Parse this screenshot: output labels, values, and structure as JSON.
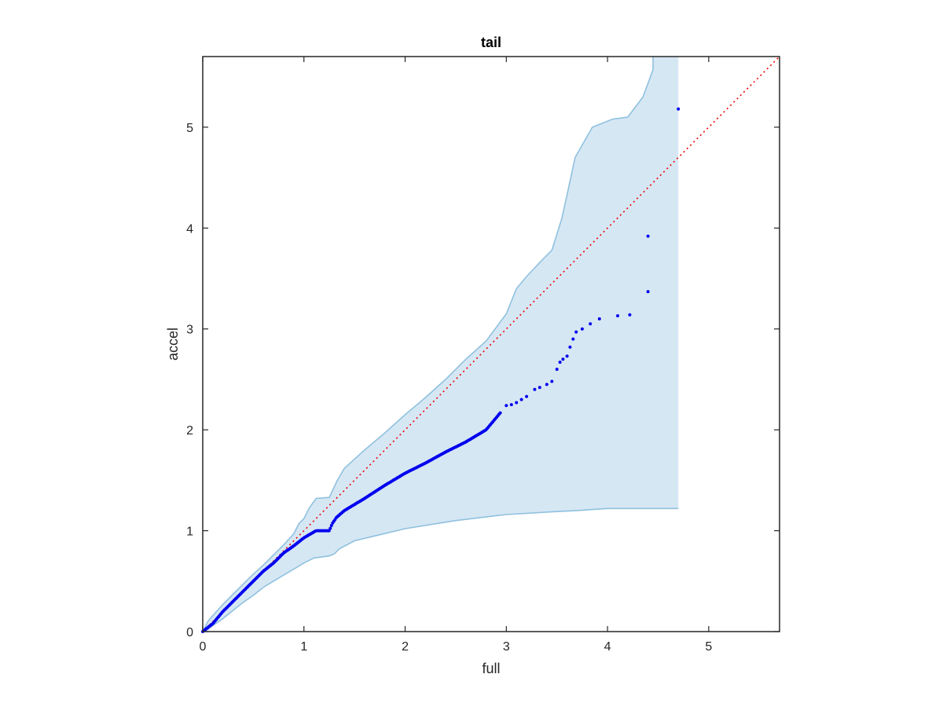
{
  "chart_data": {
    "type": "scatter",
    "title": "tail",
    "xlabel": "full",
    "ylabel": "accel",
    "xlim": [
      0,
      5.7
    ],
    "ylim": [
      0,
      5.7
    ],
    "xticks": [
      0,
      1,
      2,
      3,
      4,
      5
    ],
    "yticks": [
      0,
      1,
      2,
      3,
      4,
      5
    ],
    "grid": false,
    "colors": {
      "points": "#0000ee",
      "reference": "#ee0000",
      "band_fill": "#d6e7f4",
      "band_edge": "#8fc1de",
      "axes": "#262626"
    },
    "reference_line": {
      "x": [
        0,
        5.7
      ],
      "y": [
        0,
        5.7
      ]
    },
    "band": {
      "upper": [
        [
          0,
          0
        ],
        [
          0.05,
          0.1
        ],
        [
          0.1,
          0.16
        ],
        [
          0.2,
          0.27
        ],
        [
          0.3,
          0.37
        ],
        [
          0.4,
          0.47
        ],
        [
          0.5,
          0.57
        ],
        [
          0.6,
          0.66
        ],
        [
          0.7,
          0.76
        ],
        [
          0.8,
          0.86
        ],
        [
          0.9,
          0.97
        ],
        [
          0.95,
          1.07
        ],
        [
          1.0,
          1.12
        ],
        [
          1.05,
          1.22
        ],
        [
          1.12,
          1.32
        ],
        [
          1.25,
          1.33
        ],
        [
          1.33,
          1.5
        ],
        [
          1.4,
          1.62
        ],
        [
          1.6,
          1.8
        ],
        [
          1.8,
          1.97
        ],
        [
          2.0,
          2.15
        ],
        [
          2.2,
          2.32
        ],
        [
          2.4,
          2.5
        ],
        [
          2.6,
          2.7
        ],
        [
          2.8,
          2.88
        ],
        [
          3.0,
          3.15
        ],
        [
          3.1,
          3.4
        ],
        [
          3.2,
          3.52
        ],
        [
          3.35,
          3.68
        ],
        [
          3.45,
          3.78
        ],
        [
          3.55,
          4.1
        ],
        [
          3.6,
          4.33
        ],
        [
          3.68,
          4.7
        ],
        [
          3.85,
          5.0
        ],
        [
          4.05,
          5.08
        ],
        [
          4.2,
          5.1
        ],
        [
          4.35,
          5.3
        ],
        [
          4.45,
          5.57
        ],
        [
          4.45,
          5.7
        ],
        [
          4.7,
          5.7
        ]
      ],
      "lower": [
        [
          4.7,
          1.22
        ],
        [
          4.45,
          1.22
        ],
        [
          4.0,
          1.22
        ],
        [
          3.7,
          1.2
        ],
        [
          3.5,
          1.19
        ],
        [
          3.0,
          1.16
        ],
        [
          2.5,
          1.1
        ],
        [
          2.0,
          1.02
        ],
        [
          1.75,
          0.96
        ],
        [
          1.5,
          0.9
        ],
        [
          1.35,
          0.82
        ],
        [
          1.3,
          0.77
        ],
        [
          1.25,
          0.75
        ],
        [
          1.1,
          0.73
        ],
        [
          1.0,
          0.68
        ],
        [
          0.9,
          0.62
        ],
        [
          0.8,
          0.56
        ],
        [
          0.7,
          0.5
        ],
        [
          0.6,
          0.44
        ],
        [
          0.5,
          0.36
        ],
        [
          0.4,
          0.29
        ],
        [
          0.3,
          0.21
        ],
        [
          0.2,
          0.13
        ],
        [
          0.1,
          0.06
        ],
        [
          0.05,
          0.02
        ],
        [
          0,
          0
        ]
      ]
    },
    "points": {
      "dense_x": [
        0,
        2.95
      ],
      "dense_y": [
        0,
        2.18
      ],
      "curve": [
        [
          0,
          0
        ],
        [
          0.1,
          0.08
        ],
        [
          0.2,
          0.2
        ],
        [
          0.4,
          0.4
        ],
        [
          0.6,
          0.6
        ],
        [
          0.7,
          0.68
        ],
        [
          0.8,
          0.78
        ],
        [
          0.9,
          0.85
        ],
        [
          1.0,
          0.93
        ],
        [
          1.12,
          1.0
        ],
        [
          1.25,
          1.0
        ],
        [
          1.28,
          1.07
        ],
        [
          1.32,
          1.13
        ],
        [
          1.4,
          1.2
        ],
        [
          1.6,
          1.32
        ],
        [
          1.8,
          1.45
        ],
        [
          2.0,
          1.57
        ],
        [
          2.2,
          1.67
        ],
        [
          2.4,
          1.78
        ],
        [
          2.6,
          1.88
        ],
        [
          2.8,
          2.0
        ],
        [
          2.95,
          2.18
        ]
      ],
      "sparse": [
        [
          3.0,
          2.24
        ],
        [
          3.05,
          2.25
        ],
        [
          3.1,
          2.27
        ],
        [
          3.15,
          2.3
        ],
        [
          3.2,
          2.33
        ],
        [
          3.28,
          2.4
        ],
        [
          3.33,
          2.42
        ],
        [
          3.4,
          2.45
        ],
        [
          3.45,
          2.48
        ],
        [
          3.5,
          2.6
        ],
        [
          3.53,
          2.67
        ],
        [
          3.56,
          2.7
        ],
        [
          3.6,
          2.73
        ],
        [
          3.63,
          2.82
        ],
        [
          3.66,
          2.9
        ],
        [
          3.69,
          2.97
        ],
        [
          3.75,
          3.0
        ],
        [
          3.83,
          3.05
        ],
        [
          3.92,
          3.1
        ],
        [
          4.1,
          3.13
        ],
        [
          4.22,
          3.14
        ],
        [
          4.4,
          3.37
        ],
        [
          4.4,
          3.92
        ],
        [
          4.7,
          5.18
        ]
      ]
    }
  }
}
